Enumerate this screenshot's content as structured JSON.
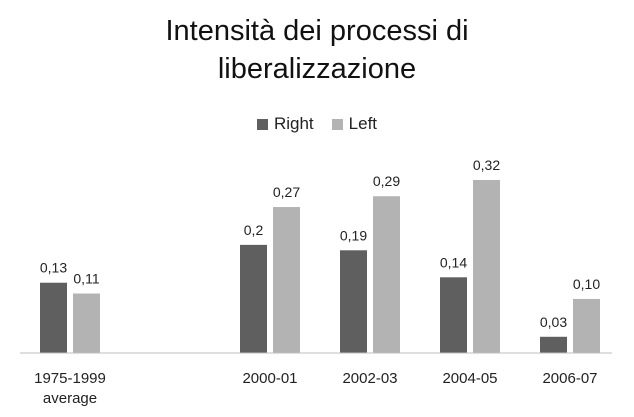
{
  "chart_data": {
    "type": "bar",
    "title_lines": [
      "Intensità dei processi di",
      "liberalizzazione"
    ],
    "categories": [
      [
        "1975-1999",
        "average"
      ],
      [
        "2000-01"
      ],
      [
        "2002-03"
      ],
      [
        "2004-05"
      ],
      [
        "2006-07"
      ]
    ],
    "series": [
      {
        "name": "Right",
        "color": "#5f5f5f",
        "values": [
          0.13,
          0.2,
          0.19,
          0.14,
          0.03
        ],
        "labels": [
          "0,13",
          "0,2",
          "0,19",
          "0,14",
          "0,03"
        ]
      },
      {
        "name": "Left",
        "color": "#b3b3b3",
        "values": [
          0.11,
          0.27,
          0.29,
          0.32,
          0.1
        ],
        "labels": [
          "0,11",
          "0,27",
          "0,29",
          "0,32",
          "0,10"
        ]
      }
    ],
    "ylim": [
      0,
      0.35
    ],
    "grid": false,
    "legend_position": "top-center"
  }
}
